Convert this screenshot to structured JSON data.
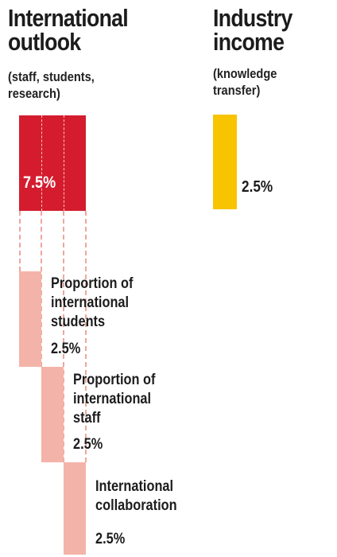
{
  "intl": {
    "title_line1": "International",
    "title_line2": "outlook",
    "sub_line1": "(staff, students,",
    "sub_line2": "research)",
    "total_pct": "7.5%"
  },
  "industry": {
    "title_line1": "Industry",
    "title_line2": "income",
    "sub_line1": "(knowledge",
    "sub_line2": "transfer)",
    "pct": "2.5%"
  },
  "components": [
    {
      "lines": [
        "Proportion of",
        "international",
        "students"
      ],
      "pct": "2.5%"
    },
    {
      "lines": [
        "Proportion of",
        "international",
        "staff"
      ],
      "pct": "2.5%"
    },
    {
      "lines": [
        "International",
        "collaboration"
      ],
      "pct": "2.5%"
    }
  ],
  "colors": {
    "red": "#d41c2e",
    "pink": "#f4b3a8",
    "yellow": "#f8c400"
  }
}
